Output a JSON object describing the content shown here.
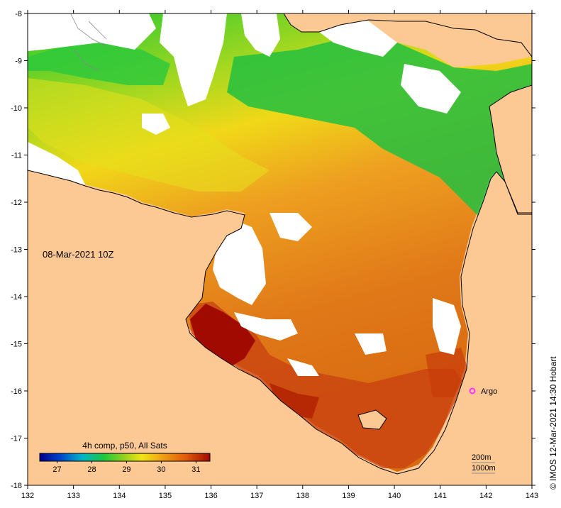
{
  "map": {
    "date_label": "08-Mar-2021 10Z",
    "credit_text": "©  IMOS 12-Mar-2021 14:30 Hobart",
    "x_ticks": [
      "132",
      "133",
      "134",
      "135",
      "136",
      "137",
      "138",
      "139",
      "140",
      "141",
      "142",
      "143"
    ],
    "y_ticks": [
      "-8",
      "-9",
      "-10",
      "-11",
      "-12",
      "-13",
      "-14",
      "-15",
      "-16",
      "-17",
      "-18"
    ],
    "lon_range": [
      132,
      143
    ],
    "lat_range": [
      -18,
      -8
    ],
    "colorbar": {
      "title": "4h comp, p50, All Sats",
      "tick_labels": [
        "27",
        "28",
        "29",
        "30",
        "31"
      ],
      "tick_values": [
        27,
        28,
        29,
        30,
        31
      ],
      "range": [
        26.5,
        31.4
      ]
    },
    "marker": {
      "label": "Argo",
      "lon": 141.7,
      "lat": -16.0,
      "color": "#ff33ff"
    },
    "contours": [
      "200m",
      "1000m"
    ],
    "colors": {
      "land": "#fcc894",
      "no_data": "#ffffff",
      "coast": "#000000"
    }
  }
}
